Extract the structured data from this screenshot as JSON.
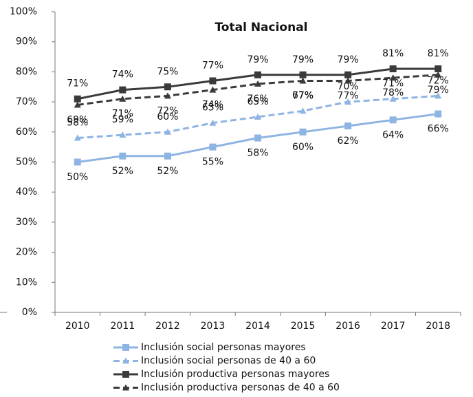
{
  "chart_data": {
    "type": "line",
    "title": "Total Nacional",
    "categories": [
      "2010",
      "2011",
      "2012",
      "2013",
      "2014",
      "2015",
      "2016",
      "2017",
      "2018"
    ],
    "ylim": [
      0,
      100
    ],
    "yticks": [
      {
        "value": 0,
        "label": "0%"
      },
      {
        "value": 10,
        "label": "10%"
      },
      {
        "value": 20,
        "label": "20%"
      },
      {
        "value": 30,
        "label": "30%"
      },
      {
        "value": 40,
        "label": "40%"
      },
      {
        "value": 50,
        "label": "50%"
      },
      {
        "value": 60,
        "label": "60%"
      },
      {
        "value": 70,
        "label": "70%"
      },
      {
        "value": 80,
        "label": "80%"
      },
      {
        "value": 90,
        "label": "90%"
      },
      {
        "value": 100,
        "label": "100%"
      }
    ],
    "grid": false,
    "legend": "bottom",
    "series": [
      {
        "name": "Inclusión social personas mayores",
        "color": "#8eb4e3",
        "line_style": "solid",
        "marker": "square",
        "values": [
          50,
          52,
          52,
          55,
          58,
          60,
          62,
          64,
          66
        ],
        "value_labels": [
          "50%",
          "52%",
          "52%",
          "55%",
          "58%",
          "60%",
          "62%",
          "64%",
          "66%"
        ]
      },
      {
        "name": "Inclusión social personas de 40 a 60",
        "color": "#8eb4e3",
        "line_style": "dashed",
        "marker": "triangle",
        "values": [
          58,
          59,
          60,
          63,
          65,
          67,
          70,
          71,
          72
        ],
        "value_labels": [
          "58%",
          "59%",
          "60%",
          "63%",
          "65%",
          "67%",
          "70%",
          "71%",
          "72%"
        ]
      },
      {
        "name": "Inclusión productiva personas mayores",
        "color": "#3a3a3a",
        "line_style": "solid",
        "marker": "square",
        "values": [
          71,
          74,
          75,
          77,
          79,
          79,
          79,
          81,
          81
        ],
        "value_labels": [
          "71%",
          "74%",
          "75%",
          "77%",
          "79%",
          "79%",
          "79%",
          "81%",
          "81%"
        ]
      },
      {
        "name": "Inclusión productiva personas de 40 a 60",
        "color": "#3a3a3a",
        "line_style": "dashed",
        "marker": "triangle",
        "values": [
          69,
          71,
          72,
          74,
          76,
          77,
          77,
          78,
          79
        ],
        "value_labels": [
          "69%",
          "71%",
          "72%",
          "74%",
          "76%",
          "77%",
          "77%",
          "78%",
          "79%"
        ]
      }
    ]
  }
}
